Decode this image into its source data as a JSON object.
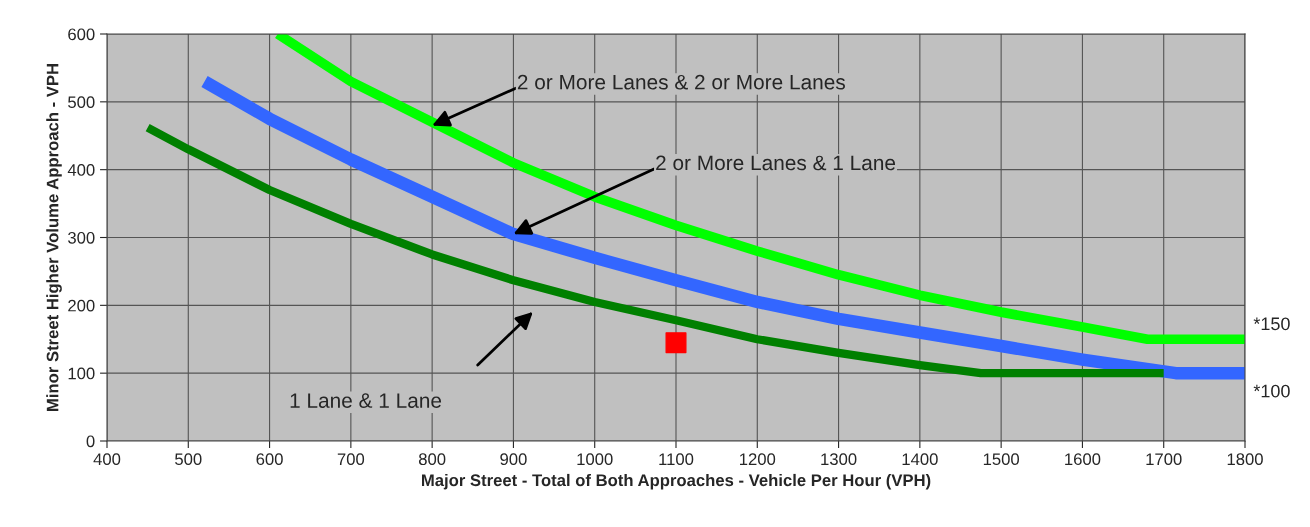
{
  "chart_data": {
    "type": "line",
    "xlabel": "Major Street - Total of Both Approaches - Vehicle Per Hour (VPH)",
    "ylabel": "Minor Street Higher Volume Approach - VPH",
    "xlim": [
      400,
      1800
    ],
    "ylim": [
      0,
      600
    ],
    "xticks": [
      400,
      500,
      600,
      700,
      800,
      900,
      1000,
      1100,
      1200,
      1300,
      1400,
      1500,
      1600,
      1700,
      1800
    ],
    "yticks": [
      0,
      100,
      200,
      300,
      400,
      500,
      600
    ],
    "grid": true,
    "line_style": "solid",
    "marker": "none",
    "series": [
      {
        "color": "#00ff00",
        "x": [
          610,
          700,
          800,
          900,
          1000,
          1100,
          1200,
          1300,
          1400,
          1500,
          1600,
          1680,
          1800
        ],
        "values": [
          600,
          530,
          470,
          410,
          360,
          318,
          280,
          245,
          215,
          190,
          168,
          150,
          150
        ]
      },
      {
        "color": "#3366ff",
        "x": [
          520,
          600,
          700,
          800,
          900,
          1000,
          1100,
          1200,
          1300,
          1400,
          1500,
          1600,
          1715,
          1800
        ],
        "values": [
          530,
          475,
          415,
          360,
          305,
          270,
          237,
          205,
          180,
          160,
          140,
          120,
          100,
          100
        ]
      },
      {
        "color": "#008000",
        "x": [
          450,
          500,
          600,
          700,
          800,
          900,
          1000,
          1100,
          1200,
          1300,
          1400,
          1475,
          1700
        ],
        "values": [
          462,
          430,
          370,
          320,
          275,
          237,
          205,
          178,
          150,
          130,
          112,
          100,
          100
        ]
      },
      {
        "type": "scatter",
        "marker": "square",
        "color": "#ff0000",
        "x": [
          1100
        ],
        "values": [
          145
        ]
      }
    ],
    "annotations": [
      {
        "text": "2 or More Lanes & 2 or More Lanes",
        "x": 800,
        "y": 465
      },
      {
        "text": "2 or More Lanes & 1 Lane",
        "x": 900,
        "y": 305
      },
      "1 Lane & 1 Lane",
      {
        "text": "*150",
        "x": 1800,
        "y": 150
      },
      {
        "text": "*100",
        "x": 1800,
        "y": 100
      }
    ]
  }
}
